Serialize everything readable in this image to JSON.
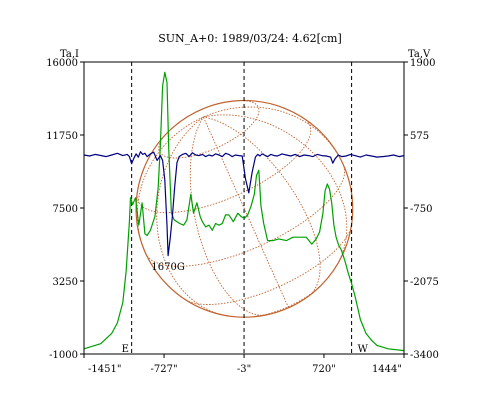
{
  "chart_data": {
    "type": "line",
    "title": "SUN_A+0: 1989/03/24: 4.62[cm]",
    "left_axis": {
      "label": "Ta,I",
      "ylim": [
        -1000,
        16000
      ],
      "ticks": [
        -1000,
        3250,
        7500,
        11750,
        16000
      ],
      "tick_labels": [
        "-1000",
        "3250",
        "7500",
        "11750",
        "16000"
      ]
    },
    "right_axis": {
      "label": "Ta,V",
      "ylim": [
        -3400,
        1900
      ],
      "ticks": [
        -3400,
        -2075,
        -750,
        575,
        1900
      ],
      "tick_labels": [
        "-3400",
        "-2075",
        "-750",
        "575",
        "1900"
      ]
    },
    "x_axis": {
      "xlim": [
        -1451,
        1444
      ],
      "ticks": [
        -1451,
        -727,
        -3,
        720,
        1444
      ],
      "tick_labels": [
        "-1451\"",
        "-727\"",
        "-3\"",
        "720\"",
        "1444\""
      ]
    },
    "grid": false,
    "limb_markers": [
      {
        "x": -1020,
        "label": "E"
      },
      {
        "x": 970,
        "label": "W"
      }
    ],
    "center_marker_x": -3,
    "annotations": [
      {
        "text": "1670G",
        "x": -690,
        "y": 3900
      }
    ],
    "colors": {
      "intensity": "#00a000",
      "polarization": "#000080",
      "disk": "#c0622d",
      "markers": "#000000"
    },
    "series": [
      {
        "name": "Ta,I",
        "axis": "left",
        "color": "#00a000",
        "x": [
          -1451,
          -1300,
          -1200,
          -1150,
          -1100,
          -1070,
          -1040,
          -1030,
          -1010,
          -985,
          -955,
          -925,
          -900,
          -880,
          -850,
          -810,
          -780,
          -760,
          -740,
          -720,
          -700,
          -685,
          -660,
          -635,
          -610,
          -585,
          -550,
          -520,
          -485,
          -460,
          -430,
          -400,
          -380,
          -350,
          -320,
          -290,
          -260,
          -230,
          -200,
          -170,
          -140,
          -100,
          -60,
          -30,
          0,
          30,
          60,
          90,
          110,
          130,
          150,
          175,
          210,
          260,
          310,
          380,
          440,
          500,
          560,
          610,
          650,
          680,
          710,
          730,
          750,
          770,
          790,
          810,
          830,
          850,
          880,
          910,
          940,
          970,
          1000,
          1050,
          1100,
          1150,
          1200,
          1300,
          1444
        ],
        "y": [
          -700,
          -400,
          200,
          800,
          2000,
          3800,
          6700,
          8100,
          7700,
          8100,
          6500,
          7800,
          6000,
          5900,
          6200,
          7000,
          8700,
          11200,
          14600,
          15400,
          14800,
          11000,
          7200,
          6800,
          6700,
          6600,
          6500,
          6800,
          8300,
          7200,
          7800,
          7000,
          6700,
          6400,
          6500,
          6200,
          6600,
          6500,
          6600,
          7100,
          7100,
          6700,
          7200,
          7000,
          6900,
          7100,
          7600,
          8300,
          9400,
          9700,
          7600,
          6600,
          5600,
          5600,
          5700,
          5600,
          5800,
          5800,
          5800,
          5400,
          5700,
          6100,
          7200,
          8500,
          8900,
          8600,
          7800,
          6500,
          5800,
          5400,
          5000,
          4400,
          3700,
          3100,
          2400,
          1000,
          200,
          -200,
          -500,
          -700,
          -800
        ]
      },
      {
        "name": "Ta,V",
        "axis": "right",
        "color": "#000080",
        "x": [
          -1451,
          -1400,
          -1350,
          -1300,
          -1250,
          -1200,
          -1150,
          -1100,
          -1060,
          -1040,
          -1020,
          -1000,
          -980,
          -960,
          -940,
          -920,
          -900,
          -880,
          -850,
          -820,
          -790,
          -760,
          -740,
          -720,
          -700,
          -690,
          -670,
          -650,
          -630,
          -610,
          -590,
          -560,
          -530,
          -500,
          -470,
          -440,
          -410,
          -380,
          -350,
          -320,
          -290,
          -260,
          -230,
          -200,
          -170,
          -140,
          -110,
          -80,
          -50,
          -20,
          10,
          40,
          70,
          100,
          120,
          140,
          160,
          180,
          210,
          240,
          270,
          300,
          340,
          380,
          420,
          460,
          500,
          540,
          580,
          620,
          660,
          700,
          740,
          780,
          800,
          820,
          850,
          880,
          920,
          960,
          1000,
          1050,
          1100,
          1150,
          1200,
          1250,
          1300,
          1350,
          1400,
          1444
        ],
        "y": [
          212,
          193,
          222,
          203,
          183,
          212,
          242,
          202,
          222,
          183,
          54,
          153,
          232,
          173,
          272,
          222,
          242,
          183,
          232,
          262,
          114,
          202,
          114,
          -242,
          -1065,
          -1615,
          -1286,
          -875,
          -364,
          74,
          183,
          222,
          242,
          183,
          252,
          212,
          202,
          222,
          183,
          212,
          193,
          232,
          212,
          183,
          242,
          222,
          183,
          212,
          202,
          193,
          -222,
          -474,
          -105,
          173,
          222,
          193,
          232,
          212,
          183,
          222,
          202,
          193,
          232,
          212,
          193,
          222,
          183,
          212,
          202,
          183,
          222,
          202,
          193,
          173,
          64,
          143,
          212,
          183,
          193,
          222,
          202,
          173,
          212,
          193,
          173,
          183,
          193,
          212,
          183,
          202
        ]
      }
    ],
    "disk": {
      "center_x": 0,
      "center_y": 7450,
      "radius_arcsec": 980
    }
  }
}
